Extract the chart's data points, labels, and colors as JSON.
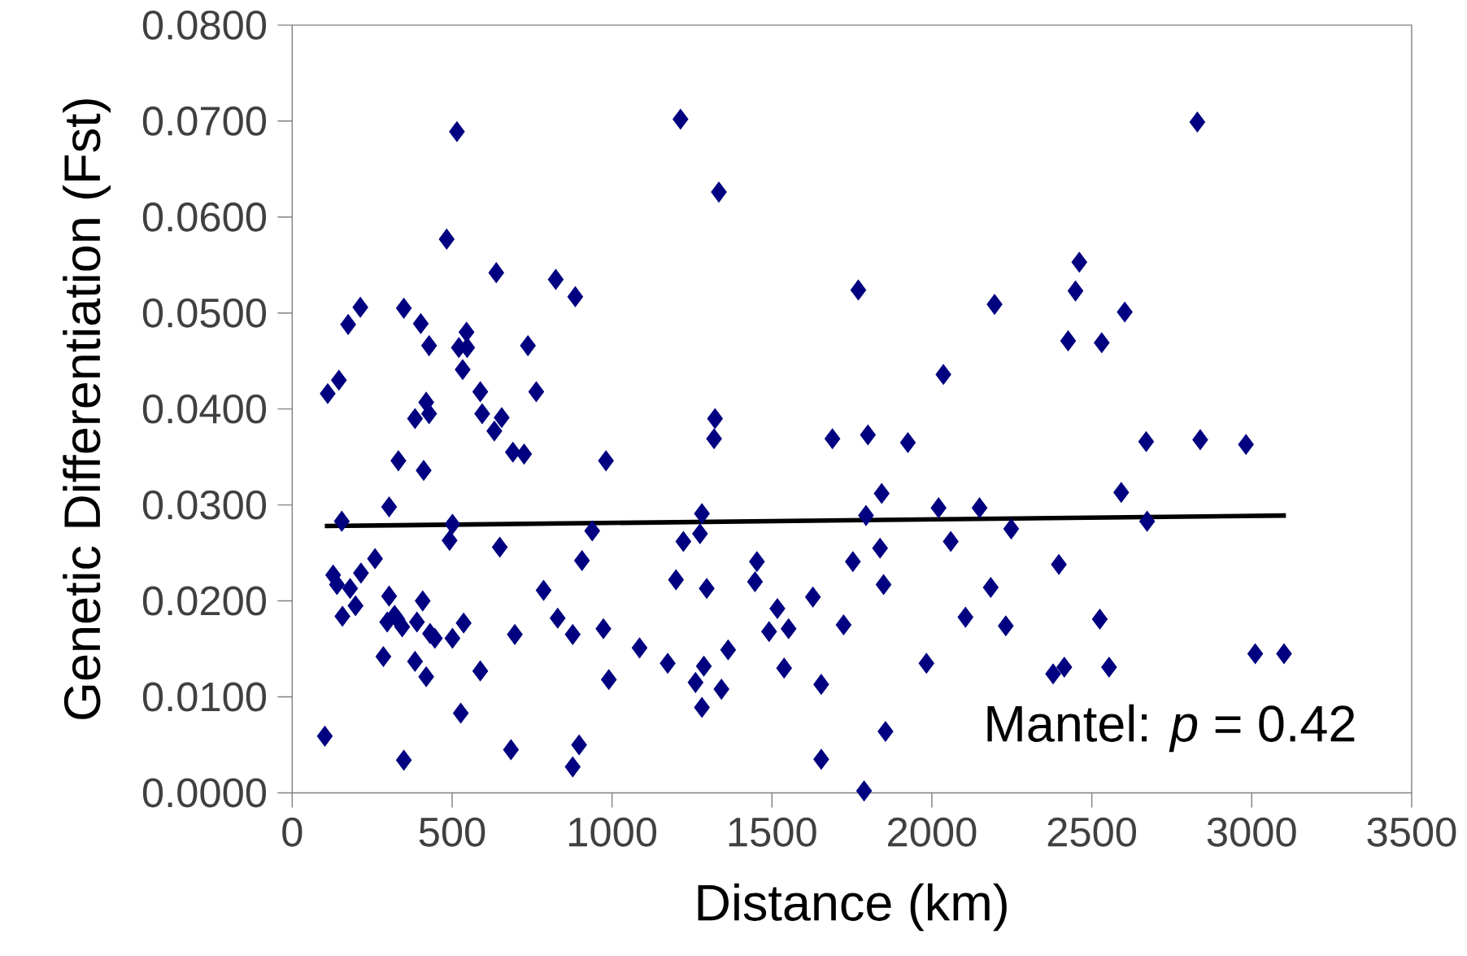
{
  "chart_data": {
    "type": "scatter",
    "xlabel": "Distance (km)",
    "ylabel": "Genetic Differentiation (Fst)",
    "annotations": [
      "Mantel: *p* = 0.42"
    ],
    "xlim": [
      0,
      3500
    ],
    "xticks": [
      0,
      500,
      1000,
      1500,
      2000,
      2500,
      3000,
      3500
    ],
    "ylim": [
      0,
      0.08
    ],
    "yticks": [
      {
        "value": 0,
        "label": "0.0000"
      },
      {
        "value": 0.01,
        "label": "0.0100"
      },
      {
        "value": 0.02,
        "label": "0.0200"
      },
      {
        "value": 0.03,
        "label": "0.0300"
      },
      {
        "value": 0.04,
        "label": "0.0400"
      },
      {
        "value": 0.05,
        "label": "0.0500"
      },
      {
        "value": 0.06,
        "label": "0.0600"
      },
      {
        "value": 0.07,
        "label": "0.0700"
      },
      {
        "value": 0.08,
        "label": "0.0800"
      }
    ],
    "grid": false,
    "series": [
      {
        "marker": "diamond",
        "color": "#000080",
        "x": [
          102,
          111,
          146,
          128,
          140,
          155,
          157,
          175,
          181,
          198,
          213,
          215,
          259,
          285,
          303,
          303,
          297,
          320,
          332,
          329,
          344,
          349,
          349,
          384,
          390,
          384,
          402,
          408,
          411,
          419,
          419,
          428,
          428,
          431,
          446,
          483,
          492,
          501,
          501,
          515,
          527,
          521,
          533,
          536,
          547,
          545,
          588,
          588,
          594,
          632,
          638,
          649,
          655,
          684,
          690,
          696,
          725,
          737,
          763,
          786,
          824,
          830,
          877,
          877,
          885,
          897,
          906,
          938,
          973,
          981,
          990,
          1086,
          1174,
          1200,
          1214,
          1223,
          1261,
          1275,
          1281,
          1281,
          1287,
          1296,
          1322,
          1319,
          1334,
          1342,
          1363,
          1447,
          1453,
          1491,
          1517,
          1538,
          1552,
          1628,
          1654,
          1654,
          1689,
          1724,
          1753,
          1770,
          1788,
          1794,
          1800,
          1843,
          1838,
          1849,
          1855,
          1925,
          1983,
          2021,
          2036,
          2059,
          2105,
          2149,
          2184,
          2196,
          2231,
          2248,
          2379,
          2397,
          2414,
          2426,
          2449,
          2461,
          2525,
          2531,
          2554,
          2592,
          2603,
          2670,
          2673,
          2830,
          2839,
          2982,
          3011,
          3101
        ],
        "values": [
          0.0059,
          0.0416,
          0.043,
          0.0227,
          0.0217,
          0.0283,
          0.0184,
          0.0488,
          0.0213,
          0.0195,
          0.0506,
          0.0229,
          0.0244,
          0.0142,
          0.0298,
          0.0205,
          0.0178,
          0.0185,
          0.0346,
          0.0181,
          0.0173,
          0.0034,
          0.0505,
          0.039,
          0.0178,
          0.0137,
          0.0489,
          0.02,
          0.0336,
          0.0407,
          0.0121,
          0.0395,
          0.0466,
          0.0166,
          0.0161,
          0.0577,
          0.0263,
          0.028,
          0.0161,
          0.0689,
          0.0083,
          0.0464,
          0.0441,
          0.0177,
          0.0464,
          0.048,
          0.0127,
          0.0418,
          0.0395,
          0.0377,
          0.0542,
          0.0256,
          0.0391,
          0.0045,
          0.0355,
          0.0165,
          0.0353,
          0.0466,
          0.0418,
          0.0211,
          0.0535,
          0.0182,
          0.0027,
          0.0165,
          0.0517,
          0.005,
          0.0242,
          0.0273,
          0.0171,
          0.0346,
          0.0118,
          0.0151,
          0.0135,
          0.0222,
          0.0702,
          0.0262,
          0.0115,
          0.027,
          0.0291,
          0.0089,
          0.0132,
          0.0213,
          0.039,
          0.0369,
          0.0626,
          0.0108,
          0.0149,
          0.022,
          0.0241,
          0.0168,
          0.0192,
          0.013,
          0.0171,
          0.0204,
          0.0113,
          0.0035,
          0.0369,
          0.0175,
          0.0241,
          0.0524,
          0.0002,
          0.0289,
          0.0373,
          0.0312,
          0.0255,
          0.0217,
          0.0064,
          0.0365,
          0.0135,
          0.0297,
          0.0436,
          0.0262,
          0.0183,
          0.0297,
          0.0214,
          0.0509,
          0.0174,
          0.0275,
          0.0124,
          0.0238,
          0.0131,
          0.0471,
          0.0523,
          0.0553,
          0.0181,
          0.0469,
          0.0131,
          0.0313,
          0.0501,
          0.0366,
          0.0283,
          0.0699,
          0.0368,
          0.0363,
          0.0145,
          0.0145
        ]
      },
      {
        "type": "line",
        "marker": "none",
        "color": "#000000",
        "x": [
          102,
          3107
        ],
        "values": [
          0.0278,
          0.0289
        ]
      }
    ]
  }
}
